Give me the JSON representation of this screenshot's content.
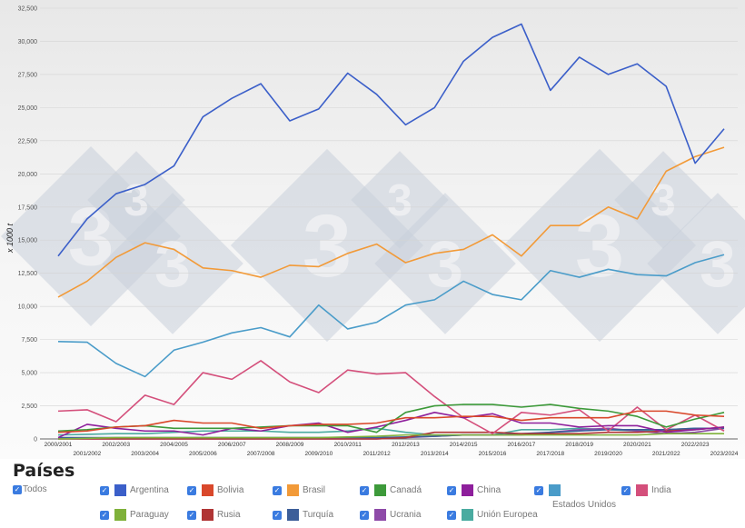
{
  "chart_data": {
    "type": "line",
    "ylabel": "x 1000 t",
    "ylim": [
      0,
      32500
    ],
    "yticks": [
      "0",
      "2,500",
      "5,000",
      "7,500",
      "10,000",
      "12,500",
      "15,000",
      "17,500",
      "20,000",
      "22,500",
      "25,000",
      "27,500",
      "30,000",
      "32,500"
    ],
    "grid": true,
    "categories": [
      "2000/2001",
      "2001/2002",
      "2002/2003",
      "2003/2004",
      "2004/2005",
      "2005/2006",
      "2006/2007",
      "2007/2008",
      "2008/2009",
      "2009/2010",
      "2010/2011",
      "2011/2012",
      "2012/2013",
      "2013/2014",
      "2014/2015",
      "2015/2016",
      "2016/2017",
      "2017/2018",
      "2018/2019",
      "2019/2020",
      "2020/2021",
      "2021/2022",
      "2022/2023",
      "2023/2024"
    ],
    "series": [
      {
        "name": "Argentina",
        "color": "#3b5fc9",
        "values": [
          13800,
          16600,
          18500,
          19200,
          20600,
          24300,
          25700,
          26800,
          24000,
          24900,
          27600,
          26000,
          23700,
          25000,
          28500,
          30300,
          31300,
          26300,
          28800,
          27500,
          28300,
          26600,
          20800,
          23400
        ]
      },
      {
        "name": "Bolivia",
        "color": "#d9482b",
        "values": [
          500,
          600,
          900,
          1000,
          1400,
          1200,
          1200,
          800,
          1000,
          1100,
          1100,
          1200,
          1600,
          1600,
          1700,
          1700,
          1400,
          1600,
          1600,
          1600,
          2100,
          2100,
          1800,
          1700
        ]
      },
      {
        "name": "Brasil",
        "color": "#f29a38",
        "values": [
          10700,
          11900,
          13700,
          14800,
          14300,
          12900,
          12700,
          12200,
          13100,
          13000,
          14000,
          14700,
          13300,
          14000,
          14300,
          15400,
          13800,
          16100,
          16100,
          17500,
          16600,
          20200,
          21300,
          22000
        ]
      },
      {
        "name": "Canadá",
        "color": "#3d9a3a",
        "values": [
          600,
          700,
          900,
          1000,
          800,
          800,
          800,
          900,
          1000,
          1000,
          1000,
          500,
          2000,
          2500,
          2600,
          2600,
          2400,
          2600,
          2300,
          2100,
          1700,
          900,
          1500,
          2000
        ]
      },
      {
        "name": "China",
        "color": "#8e1f9c",
        "values": [
          100,
          1100,
          800,
          600,
          600,
          300,
          800,
          600,
          1000,
          1200,
          500,
          900,
          1400,
          2000,
          1600,
          1900,
          1200,
          1200,
          900,
          1000,
          1000,
          500,
          700,
          900
        ]
      },
      {
        "name": "Estados Unidos",
        "color": "#4a9cc9",
        "values": [
          7350,
          7300,
          5700,
          4700,
          6700,
          7300,
          8000,
          8400,
          7700,
          10100,
          8300,
          8800,
          10100,
          10500,
          11900,
          10900,
          10500,
          12700,
          12200,
          12800,
          12400,
          12300,
          13300,
          13900
        ]
      },
      {
        "name": "India",
        "color": "#d44f7b",
        "values": [
          2100,
          2200,
          1300,
          3300,
          2600,
          5000,
          4500,
          5900,
          4300,
          3500,
          5200,
          4900,
          5000,
          3200,
          1600,
          400,
          2000,
          1800,
          2200,
          600,
          2400,
          700,
          1800,
          600
        ]
      },
      {
        "name": "Paraguay",
        "color": "#7fb13a",
        "values": [
          0,
          50,
          100,
          100,
          100,
          100,
          100,
          100,
          100,
          100,
          150,
          200,
          300,
          300,
          300,
          300,
          300,
          300,
          300,
          300,
          300,
          400,
          400,
          400
        ]
      },
      {
        "name": "Rusia",
        "color": "#b03535",
        "values": [
          0,
          0,
          0,
          0,
          0,
          0,
          0,
          0,
          0,
          0,
          0,
          0,
          100,
          500,
          500,
          500,
          400,
          400,
          400,
          500,
          500,
          600,
          700,
          900
        ]
      },
      {
        "name": "Turquía",
        "color": "#3c5e99",
        "values": [
          100,
          100,
          100,
          100,
          100,
          100,
          100,
          100,
          100,
          100,
          100,
          100,
          150,
          200,
          300,
          300,
          400,
          500,
          600,
          700,
          700,
          700,
          800,
          800
        ]
      },
      {
        "name": "Ucrania",
        "color": "#8e4aa8",
        "values": [
          0,
          0,
          0,
          0,
          0,
          0,
          0,
          0,
          0,
          0,
          0,
          0,
          100,
          200,
          300,
          300,
          300,
          500,
          700,
          800,
          600,
          400,
          500,
          800
        ]
      },
      {
        "name": "Unión Europea",
        "color": "#4aaba0",
        "values": [
          300,
          350,
          400,
          400,
          500,
          600,
          600,
          600,
          500,
          500,
          600,
          800,
          500,
          300,
          300,
          300,
          700,
          700,
          800,
          700,
          600,
          700,
          800,
          800
        ]
      }
    ]
  },
  "legend": {
    "title": "Países",
    "all_label": "Todos",
    "items": [
      "Argentina",
      "Bolivia",
      "Brasil",
      "Canadá",
      "China",
      "Estados Unidos",
      "India",
      "Paraguay",
      "Rusia",
      "Turquía",
      "Ucrania",
      "Unión Europea"
    ]
  }
}
